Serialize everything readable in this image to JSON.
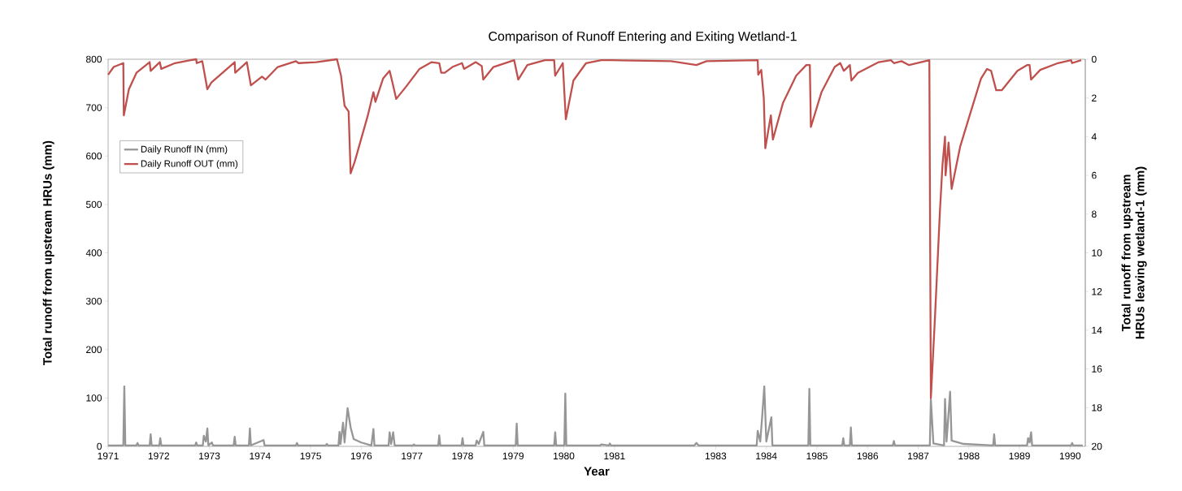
{
  "chart_data": {
    "type": "line",
    "title": "Comparison of Runoff Entering and Exiting Wetland-1",
    "xlabel": "Year",
    "ylabel": "Total runoff from upstream HRUs (mm)",
    "y2label": "Total runoff from upstream HRUs leaving wetland-1 (mm)",
    "xlim": [
      1971,
      1990.3
    ],
    "xticks": [
      1971,
      1972,
      1973,
      1974,
      1975,
      1976,
      1977,
      1978,
      1979,
      1980,
      1981,
      1983,
      1984,
      1985,
      1986,
      1987,
      1988,
      1989,
      1990
    ],
    "ylim": [
      0,
      800
    ],
    "yticks": [
      0,
      100,
      200,
      300,
      400,
      500,
      600,
      700,
      800
    ],
    "y2lim": [
      20,
      0
    ],
    "y2ticks": [
      0,
      2,
      4,
      6,
      8,
      10,
      12,
      14,
      16,
      18,
      20
    ],
    "legend": "top left",
    "series": [
      {
        "name": "Daily Runoff IN (mm)",
        "color": "#969696",
        "x": [
          1971.0,
          1971.3,
          1971.32,
          1971.34,
          1971.56,
          1971.58,
          1971.6,
          1971.82,
          1971.84,
          1971.86,
          1972.01,
          1972.03,
          1972.05,
          1972.72,
          1972.74,
          1972.76,
          1972.87,
          1972.89,
          1972.93,
          1972.96,
          1972.98,
          1973.05,
          1973.07,
          1973.48,
          1973.5,
          1973.52,
          1973.78,
          1973.8,
          1973.82,
          1974.07,
          1974.09,
          1974.71,
          1974.73,
          1974.75,
          1975.3,
          1975.32,
          1975.34,
          1975.55,
          1975.57,
          1975.59,
          1975.64,
          1975.67,
          1975.73,
          1975.79,
          1975.85,
          1976.0,
          1976.2,
          1976.24,
          1976.26,
          1976.54,
          1976.56,
          1976.59,
          1976.63,
          1976.66,
          1977.02,
          1977.04,
          1977.06,
          1977.52,
          1977.54,
          1977.56,
          1977.98,
          1978.0,
          1978.02,
          1978.26,
          1978.28,
          1978.32,
          1978.41,
          1978.43,
          1979.05,
          1979.07,
          1979.09,
          1979.81,
          1979.83,
          1979.85,
          1980.01,
          1980.03,
          1980.05,
          1980.72,
          1980.74,
          1980.89,
          1980.91,
          1980.93,
          1982.58,
          1982.62,
          1982.66,
          1983.81,
          1983.83,
          1983.88,
          1983.92,
          1983.96,
          1984.0,
          1984.1,
          1984.12,
          1984.83,
          1984.85,
          1984.87,
          1985.5,
          1985.52,
          1985.54,
          1985.65,
          1985.67,
          1985.69,
          1986.5,
          1986.52,
          1986.54,
          1987.23,
          1987.25,
          1987.3,
          1987.51,
          1987.53,
          1987.56,
          1987.63,
          1987.66,
          1987.9,
          1988.48,
          1988.5,
          1988.52,
          1989.15,
          1989.17,
          1989.2,
          1989.23,
          1989.25,
          1990.02,
          1990.04,
          1990.06,
          1990.25
        ],
        "values": [
          2,
          2,
          124,
          2,
          2,
          7,
          2,
          2,
          25,
          2,
          2,
          17,
          2,
          2,
          8,
          2,
          2,
          22,
          10,
          37,
          2,
          8,
          2,
          2,
          20,
          2,
          2,
          37,
          2,
          13,
          2,
          2,
          7,
          2,
          2,
          5,
          2,
          2,
          30,
          5,
          49,
          8,
          79,
          39,
          15,
          8,
          2,
          36,
          2,
          2,
          29,
          5,
          29,
          2,
          2,
          4,
          2,
          2,
          23,
          2,
          2,
          17,
          2,
          2,
          12,
          5,
          30,
          2,
          2,
          47,
          2,
          2,
          29,
          2,
          2,
          109,
          2,
          2,
          4,
          2,
          6,
          2,
          2,
          7,
          2,
          2,
          32,
          10,
          64,
          124,
          10,
          60,
          2,
          2,
          119,
          2,
          2,
          17,
          2,
          2,
          39,
          2,
          2,
          11,
          2,
          2,
          98,
          6,
          2,
          98,
          10,
          113,
          12,
          5,
          2,
          25,
          2,
          2,
          17,
          8,
          29,
          2,
          2,
          7,
          2,
          2
        ]
      },
      {
        "name": "Daily Runoff OUT (mm)",
        "color": "#c0504d",
        "axis": "y2",
        "x": [
          1971.0,
          1971.11,
          1971.3,
          1971.31,
          1971.41,
          1971.56,
          1971.82,
          1971.84,
          1972.02,
          1972.05,
          1972.32,
          1972.63,
          1972.74,
          1972.75,
          1972.86,
          1972.96,
          1973.04,
          1973.5,
          1973.51,
          1973.74,
          1973.82,
          1974.04,
          1974.11,
          1974.35,
          1974.71,
          1974.76,
          1975.11,
          1975.52,
          1975.6,
          1975.67,
          1975.75,
          1975.79,
          1975.87,
          1976.13,
          1976.24,
          1976.28,
          1976.43,
          1976.56,
          1976.62,
          1976.69,
          1976.89,
          1977.15,
          1977.39,
          1977.54,
          1977.58,
          1977.65,
          1977.8,
          1977.99,
          1978.03,
          1978.26,
          1978.38,
          1978.41,
          1978.61,
          1979.02,
          1979.1,
          1979.28,
          1979.63,
          1979.81,
          1979.83,
          1979.98,
          1980.04,
          1980.19,
          1980.44,
          1980.74,
          1980.95,
          1982.12,
          1982.62,
          1982.82,
          1983.83,
          1983.84,
          1983.9,
          1983.95,
          1983.98,
          1984.09,
          1984.13,
          1984.33,
          1984.59,
          1984.79,
          1984.86,
          1984.88,
          1985.09,
          1985.35,
          1985.46,
          1985.53,
          1985.65,
          1985.68,
          1985.81,
          1986.22,
          1986.46,
          1986.52,
          1986.67,
          1986.82,
          1987.22,
          1987.25,
          1987.33,
          1987.43,
          1987.48,
          1987.53,
          1987.54,
          1987.6,
          1987.66,
          1987.83,
          1988.04,
          1988.24,
          1988.36,
          1988.44,
          1988.54,
          1988.65,
          1988.96,
          1989.15,
          1989.2,
          1989.23,
          1989.41,
          1989.76,
          1990.02,
          1990.04,
          1990.22
        ],
        "values": [
          0.8,
          0.4,
          0.2,
          2.9,
          1.55,
          0.7,
          0.15,
          0.6,
          0.15,
          0.5,
          0.2,
          0.05,
          0,
          0.2,
          0.1,
          1.55,
          1.2,
          0.15,
          0.7,
          0.15,
          1.35,
          0.9,
          1.05,
          0.4,
          0.1,
          0.2,
          0.15,
          0,
          0.85,
          2.4,
          2.7,
          5.9,
          5.3,
          2.9,
          1.7,
          2.2,
          1.0,
          0.6,
          1.25,
          2.05,
          1.4,
          0.5,
          0.15,
          0.2,
          0.7,
          0.7,
          0.4,
          0.2,
          0.5,
          0.15,
          0.35,
          1.05,
          0.4,
          0.05,
          1.05,
          0.3,
          0.05,
          0.05,
          0.85,
          0.2,
          3.1,
          1.1,
          0.2,
          0.05,
          0.05,
          0.1,
          0.3,
          0.1,
          0.05,
          0.8,
          0.55,
          2.0,
          4.6,
          2.9,
          4.15,
          2.25,
          0.85,
          0.3,
          0.3,
          3.5,
          1.7,
          0.4,
          0.2,
          0.6,
          0.3,
          1.1,
          0.7,
          0.15,
          0.05,
          0.2,
          0.1,
          0.3,
          0.05,
          17.5,
          13.4,
          7.8,
          5.45,
          4.0,
          6.0,
          4.3,
          6.7,
          4.5,
          2.7,
          1.0,
          0.5,
          0.6,
          1.6,
          1.6,
          0.6,
          0.3,
          0.3,
          1.05,
          0.55,
          0.2,
          0.05,
          0.2,
          0.05
        ]
      }
    ]
  }
}
